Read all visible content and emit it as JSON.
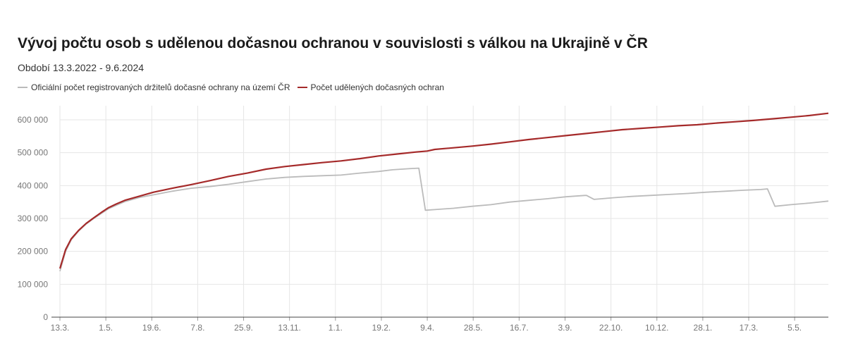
{
  "chart_data": {
    "type": "line",
    "title": "Vývoj počtu osob s udělenou dočasnou ochranou v souvislosti s válkou na Ukrajině v ČR",
    "subtitle": "Období 13.3.2022 - 9.6.2024",
    "xlabel": "",
    "ylabel": "",
    "ylim": [
      0,
      600000
    ],
    "xlim": [
      0,
      820
    ],
    "grid": true,
    "legend_position": "top-left",
    "x_tick_labels": [
      "13.3.",
      "1.5.",
      "19.6.",
      "7.8.",
      "25.9.",
      "13.11.",
      "1.1.",
      "19.2.",
      "9.4.",
      "28.5.",
      "16.7.",
      "3.9.",
      "22.10.",
      "10.12.",
      "28.1.",
      "17.3.",
      "5.5."
    ],
    "x_tick_days": [
      0,
      49,
      98,
      147,
      196,
      245,
      294,
      343,
      392,
      441,
      490,
      539,
      588,
      637,
      686,
      735,
      784
    ],
    "y_ticks": [
      0,
      100000,
      200000,
      300000,
      400000,
      500000,
      600000
    ],
    "y_tick_labels": [
      "0",
      "100 000",
      "200 000",
      "300 000",
      "400 000",
      "500 000",
      "600 000"
    ],
    "series": [
      {
        "name": "Oficiální počet registrovaných držitelů dočasné ochrany na území ČR",
        "color": "#bbbbbb",
        "points": [
          [
            0,
            140000
          ],
          [
            6,
            200000
          ],
          [
            12,
            235000
          ],
          [
            20,
            262000
          ],
          [
            28,
            283000
          ],
          [
            36,
            300000
          ],
          [
            44,
            315000
          ],
          [
            52,
            330000
          ],
          [
            60,
            340000
          ],
          [
            70,
            352000
          ],
          [
            85,
            364000
          ],
          [
            100,
            372000
          ],
          [
            120,
            383000
          ],
          [
            140,
            392000
          ],
          [
            160,
            397000
          ],
          [
            180,
            404000
          ],
          [
            200,
            412000
          ],
          [
            220,
            420000
          ],
          [
            240,
            425000
          ],
          [
            260,
            428000
          ],
          [
            280,
            430000
          ],
          [
            300,
            432000
          ],
          [
            320,
            438000
          ],
          [
            340,
            443000
          ],
          [
            355,
            448000
          ],
          [
            375,
            452000
          ],
          [
            383,
            453000
          ],
          [
            390,
            325000
          ],
          [
            400,
            327000
          ],
          [
            420,
            331000
          ],
          [
            440,
            337000
          ],
          [
            460,
            342000
          ],
          [
            480,
            350000
          ],
          [
            500,
            355000
          ],
          [
            520,
            360000
          ],
          [
            540,
            366000
          ],
          [
            560,
            370000
          ],
          [
            562,
            370000
          ],
          [
            570,
            358000
          ],
          [
            590,
            363000
          ],
          [
            610,
            367000
          ],
          [
            630,
            370000
          ],
          [
            650,
            373000
          ],
          [
            670,
            376000
          ],
          [
            690,
            380000
          ],
          [
            710,
            383000
          ],
          [
            730,
            386000
          ],
          [
            748,
            388000
          ],
          [
            755,
            390000
          ],
          [
            763,
            337000
          ],
          [
            780,
            342000
          ],
          [
            800,
            347000
          ],
          [
            820,
            353000
          ]
        ]
      },
      {
        "name": "Počet udělených dočasných ochran",
        "color": "#a52a2a",
        "points": [
          [
            0,
            148000
          ],
          [
            6,
            205000
          ],
          [
            12,
            238000
          ],
          [
            20,
            264000
          ],
          [
            28,
            285000
          ],
          [
            36,
            302000
          ],
          [
            44,
            318000
          ],
          [
            52,
            333000
          ],
          [
            60,
            344000
          ],
          [
            70,
            356000
          ],
          [
            85,
            368000
          ],
          [
            100,
            380000
          ],
          [
            120,
            392000
          ],
          [
            140,
            403000
          ],
          [
            160,
            415000
          ],
          [
            180,
            428000
          ],
          [
            200,
            438000
          ],
          [
            220,
            450000
          ],
          [
            240,
            458000
          ],
          [
            260,
            464000
          ],
          [
            280,
            470000
          ],
          [
            300,
            475000
          ],
          [
            320,
            482000
          ],
          [
            340,
            490000
          ],
          [
            360,
            496000
          ],
          [
            380,
            502000
          ],
          [
            392,
            505000
          ],
          [
            400,
            510000
          ],
          [
            420,
            515000
          ],
          [
            440,
            520000
          ],
          [
            460,
            526000
          ],
          [
            480,
            533000
          ],
          [
            500,
            540000
          ],
          [
            520,
            546000
          ],
          [
            540,
            552000
          ],
          [
            560,
            558000
          ],
          [
            580,
            564000
          ],
          [
            600,
            570000
          ],
          [
            620,
            574000
          ],
          [
            640,
            578000
          ],
          [
            660,
            582000
          ],
          [
            680,
            585000
          ],
          [
            700,
            590000
          ],
          [
            720,
            594000
          ],
          [
            740,
            598000
          ],
          [
            760,
            603000
          ],
          [
            780,
            608000
          ],
          [
            800,
            613000
          ],
          [
            820,
            620000
          ]
        ]
      }
    ]
  }
}
